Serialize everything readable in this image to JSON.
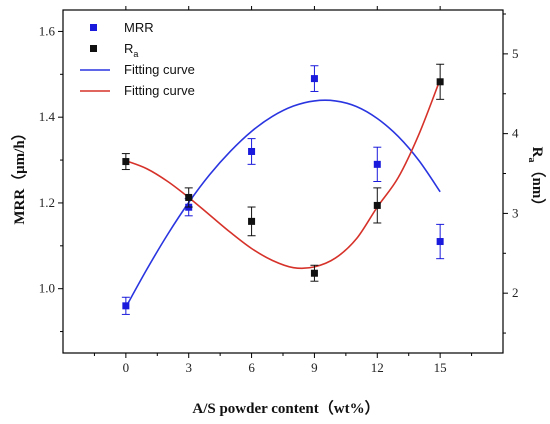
{
  "chart_data": {
    "type": "scatter",
    "xlabel": "A/S powder content（wt%）",
    "ylabel_left": "MRR（μm/h）",
    "ylabel_right_main": "R",
    "ylabel_right_sub": "a",
    "ylabel_right_unit": "（nm）",
    "xlim": [
      -3,
      18
    ],
    "ylim_left": [
      0.85,
      1.65
    ],
    "ylim_right": [
      1.25,
      5.55
    ],
    "x_ticks": [
      0,
      3,
      6,
      9,
      12,
      15
    ],
    "x_tick_labels": [
      "0",
      "3",
      "6",
      "9",
      "12",
      "15"
    ],
    "y_left_ticks": [
      1.0,
      1.2,
      1.4,
      1.6
    ],
    "y_left_tick_labels": [
      "1.0",
      "1.2",
      "1.4",
      "1.6"
    ],
    "y_right_ticks": [
      2,
      3,
      4,
      5
    ],
    "y_right_tick_labels": [
      "2",
      "3",
      "4",
      "5"
    ],
    "grid": false,
    "legend_position": "top-left",
    "series": [
      {
        "name": "MRR",
        "axis": "left",
        "marker": "square",
        "color": "#1a1adc",
        "x": [
          0,
          3,
          6,
          9,
          12,
          15
        ],
        "y": [
          0.96,
          1.19,
          1.32,
          1.49,
          1.29,
          1.11
        ],
        "yerr": [
          0.02,
          0.02,
          0.03,
          0.03,
          0.04,
          0.04
        ]
      },
      {
        "name_main": "R",
        "name_sub": "a",
        "axis": "right",
        "marker": "square",
        "color": "#111111",
        "x": [
          0,
          3,
          6,
          9,
          12,
          15
        ],
        "y": [
          3.65,
          3.2,
          2.9,
          2.25,
          3.1,
          4.65
        ],
        "yerr": [
          0.1,
          0.12,
          0.18,
          0.1,
          0.22,
          0.22
        ]
      },
      {
        "name": "Fitting curve",
        "axis": "left",
        "line": true,
        "color": "#2a35e0",
        "x": [
          0,
          1,
          2,
          3,
          4,
          5,
          6,
          7,
          8,
          9,
          10,
          11,
          12,
          13,
          14,
          15
        ],
        "y": [
          0.957,
          1.045,
          1.127,
          1.201,
          1.266,
          1.321,
          1.367,
          1.402,
          1.426,
          1.438,
          1.438,
          1.425,
          1.397,
          1.355,
          1.298,
          1.226
        ]
      },
      {
        "name": "Fitting curve",
        "axis": "right",
        "line": true,
        "color": "#d6322a",
        "x": [
          0,
          1,
          2,
          3,
          4,
          5,
          6,
          7,
          8,
          9,
          10,
          11,
          12,
          13,
          14,
          15
        ],
        "y": [
          3.66,
          3.56,
          3.4,
          3.2,
          2.98,
          2.76,
          2.56,
          2.41,
          2.32,
          2.33,
          2.44,
          2.68,
          3.08,
          3.45,
          4.0,
          4.68
        ]
      }
    ]
  }
}
